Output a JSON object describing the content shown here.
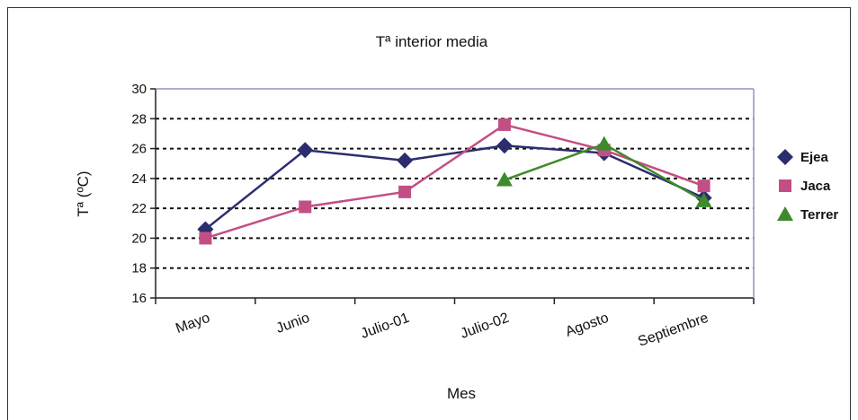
{
  "chart_data": {
    "type": "line",
    "title": "Tª interior media",
    "xlabel": "Mes",
    "ylabel": "Tª (ºC)",
    "categories": [
      "Mayo",
      "Junio",
      "Julio-01",
      "Julio-02",
      "Agosto",
      "Septiembre"
    ],
    "ylim": [
      16,
      30
    ],
    "yticks": [
      16,
      18,
      20,
      22,
      24,
      26,
      28,
      30
    ],
    "grid": "horizontal dashed",
    "legend_position": "right",
    "series": [
      {
        "name": "Ejea",
        "color": "#2b2d6e",
        "marker": "diamond",
        "values": [
          20.6,
          25.9,
          25.2,
          26.2,
          25.7,
          22.7
        ]
      },
      {
        "name": "Jaca",
        "color": "#c24f84",
        "marker": "square",
        "values": [
          20.0,
          22.1,
          23.1,
          27.6,
          25.9,
          23.5
        ]
      },
      {
        "name": "Terrer",
        "color": "#3f8a2c",
        "marker": "triangle",
        "values": [
          null,
          null,
          null,
          23.9,
          26.3,
          22.5
        ]
      }
    ]
  }
}
